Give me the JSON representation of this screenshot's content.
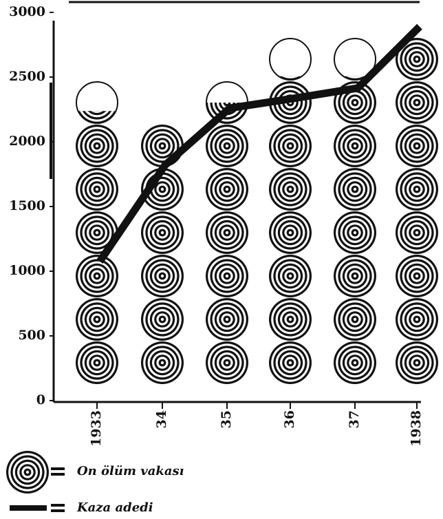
{
  "chart_data": {
    "type": "pictograph",
    "categories": [
      "1933",
      "34",
      "35",
      "36",
      "37",
      "1938"
    ],
    "series": [
      {
        "name": "On ölüm vakası",
        "color": "#111111",
        "values": [
          6.3,
          6,
          6.5,
          7.1,
          7.1,
          8
        ]
      },
      {
        "name": "Kaza adedi",
        "color": "#111111",
        "values": [
          1075,
          1820,
          2260,
          2335,
          2415,
          2890
        ]
      }
    ],
    "ylim": [
      0,
      3000
    ],
    "yticks": [
      0,
      500,
      1000,
      1500,
      2000,
      2500,
      3000
    ]
  }
}
